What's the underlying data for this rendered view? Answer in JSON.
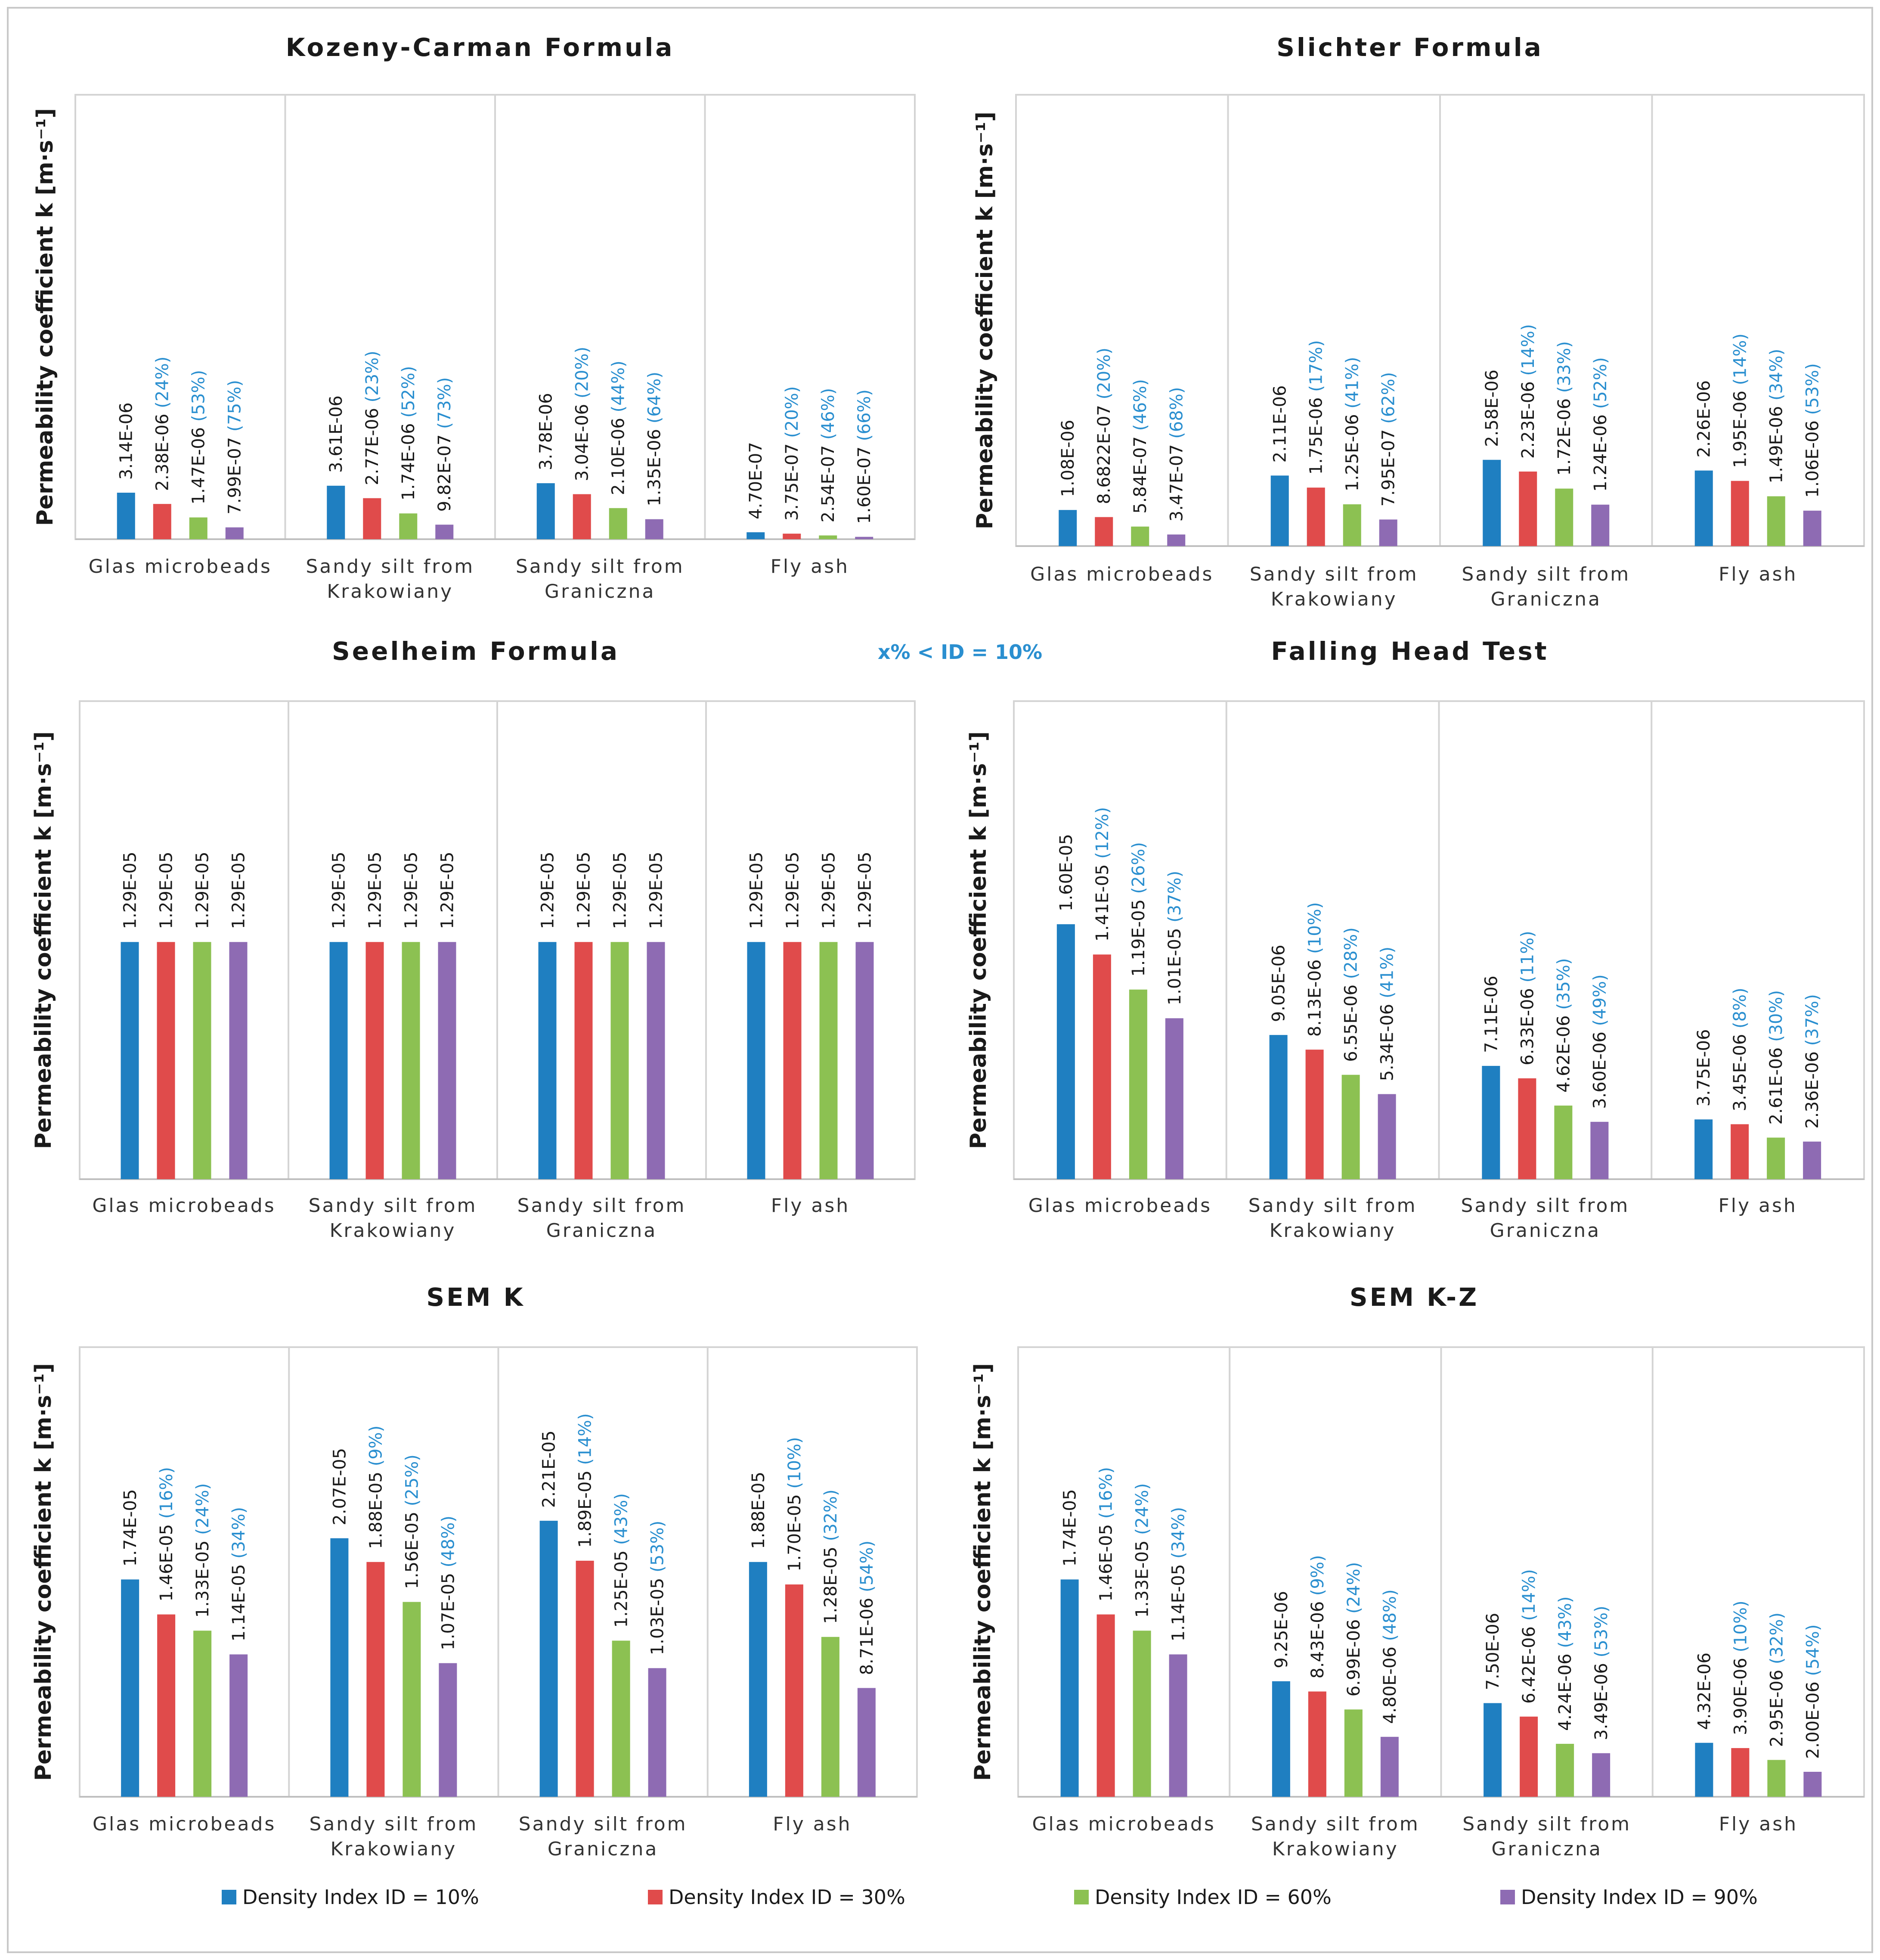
{
  "note": "x% < ID = 10%",
  "legend": [
    {
      "label": "Density Index ID = 10%",
      "color": "#1f7fc1"
    },
    {
      "label": "Density Index ID = 30%",
      "color": "#e04b4b"
    },
    {
      "label": "Density Index ID = 60%",
      "color": "#8cc152"
    },
    {
      "label": "Density Index ID = 90%",
      "color": "#8e6bb3"
    }
  ],
  "chart_data": [
    {
      "type": "bar",
      "title": "Kozeny-Carman Formula",
      "ylabel": "Permeability coefficient k [m·s⁻¹]",
      "categories": [
        [
          "Glas microbeads"
        ],
        [
          "Sandy silt from",
          "Krakowiany"
        ],
        [
          "Sandy silt from",
          "Graniczna"
        ],
        [
          "Fly ash"
        ]
      ],
      "ymax": 3e-05,
      "series": [
        {
          "name": "Density Index ID = 10%",
          "values": [
            3.14e-06,
            3.61e-06,
            3.78e-06,
            4.7e-07
          ],
          "labels": [
            "3.14E-06",
            "3.61E-06",
            "3.78E-06",
            "4.70E-07"
          ],
          "pct": [
            "",
            "",
            "",
            ""
          ]
        },
        {
          "name": "Density Index ID = 30%",
          "values": [
            2.38e-06,
            2.77e-06,
            3.04e-06,
            3.75e-07
          ],
          "labels": [
            "2.38E-06",
            "2.77E-06",
            "3.04E-06",
            "3.75E-07"
          ],
          "pct": [
            "(24%)",
            "(23%)",
            "(20%)",
            "(20%)"
          ]
        },
        {
          "name": "Density Index ID = 60%",
          "values": [
            1.47e-06,
            1.74e-06,
            2.1e-06,
            2.54e-07
          ],
          "labels": [
            "1.47E-06",
            "1.74E-06",
            "2.10E-06",
            "2.54E-07"
          ],
          "pct": [
            "(53%)",
            "(52%)",
            "(44%)",
            "(46%)"
          ]
        },
        {
          "name": "Density Index ID = 90%",
          "values": [
            7.99e-07,
            9.82e-07,
            1.35e-06,
            1.6e-07
          ],
          "labels": [
            "7.99E-07",
            "9.82E-07",
            "1.35E-06",
            "1.60E-07"
          ],
          "pct": [
            "(75%)",
            "(73%)",
            "(64%)",
            "(66%)"
          ]
        }
      ]
    },
    {
      "type": "bar",
      "title": "Slichter Formula",
      "ylabel": "Permeability coefficient k [m·s⁻¹]",
      "categories": [
        [
          "Glas microbeads"
        ],
        [
          "Sandy silt from",
          "Krakowiany"
        ],
        [
          "Sandy silt from",
          "Graniczna"
        ],
        [
          "Fly ash"
        ]
      ],
      "ymax": 1.35e-05,
      "series": [
        {
          "name": "Density Index ID = 10%",
          "values": [
            1.08e-06,
            2.11e-06,
            2.58e-06,
            2.26e-06
          ],
          "labels": [
            "1.08E-06",
            "2.11E-06",
            "2.58E-06",
            "2.26E-06"
          ],
          "pct": [
            "",
            "",
            "",
            ""
          ]
        },
        {
          "name": "Density Index ID = 30%",
          "values": [
            8.6822e-07,
            1.75e-06,
            2.23e-06,
            1.95e-06
          ],
          "labels": [
            "8.6822E-07",
            "1.75E-06",
            "2.23E-06",
            "1.95E-06"
          ],
          "pct": [
            "(20%)",
            "(17%)",
            "(14%)",
            "(14%)"
          ]
        },
        {
          "name": "Density Index ID = 60%",
          "values": [
            5.84e-07,
            1.25e-06,
            1.72e-06,
            1.49e-06
          ],
          "labels": [
            "5.84E-07",
            "1.25E-06",
            "1.72E-06",
            "1.49E-06"
          ],
          "pct": [
            "(46%)",
            "(41%)",
            "(33%)",
            "(34%)"
          ]
        },
        {
          "name": "Density Index ID = 90%",
          "values": [
            3.47e-07,
            7.95e-07,
            1.24e-06,
            1.06e-06
          ],
          "labels": [
            "3.47E-07",
            "7.95E-07",
            "1.24E-06",
            "1.06E-06"
          ],
          "pct": [
            "(68%)",
            "(62%)",
            "(52%)",
            "(53%)"
          ]
        }
      ]
    },
    {
      "type": "bar",
      "title": "Seelheim Formula",
      "ylabel": "Permeability coefficient k [m·s⁻¹]",
      "categories": [
        [
          "Glas microbeads"
        ],
        [
          "Sandy silt from",
          "Krakowiany"
        ],
        [
          "Sandy silt from",
          "Graniczna"
        ],
        [
          "Fly ash"
        ]
      ],
      "ymax": 2.6e-05,
      "series": [
        {
          "name": "Density Index ID = 10%",
          "values": [
            1.29e-05,
            1.29e-05,
            1.29e-05,
            1.29e-05
          ],
          "labels": [
            "1.29E-05",
            "1.29E-05",
            "1.29E-05",
            "1.29E-05"
          ],
          "pct": [
            "",
            "",
            "",
            ""
          ]
        },
        {
          "name": "Density Index ID = 30%",
          "values": [
            1.29e-05,
            1.29e-05,
            1.29e-05,
            1.29e-05
          ],
          "labels": [
            "1.29E-05",
            "1.29E-05",
            "1.29E-05",
            "1.29E-05"
          ],
          "pct": [
            "",
            "",
            "",
            ""
          ]
        },
        {
          "name": "Density Index ID = 60%",
          "values": [
            1.29e-05,
            1.29e-05,
            1.29e-05,
            1.29e-05
          ],
          "labels": [
            "1.29E-05",
            "1.29E-05",
            "1.29E-05",
            "1.29E-05"
          ],
          "pct": [
            "",
            "",
            "",
            ""
          ]
        },
        {
          "name": "Density Index ID = 90%",
          "values": [
            1.29e-05,
            1.29e-05,
            1.29e-05,
            1.29e-05
          ],
          "labels": [
            "1.29E-05",
            "1.29E-05",
            "1.29E-05",
            "1.29E-05"
          ],
          "pct": [
            "",
            "",
            "",
            ""
          ]
        }
      ]
    },
    {
      "type": "bar",
      "title": "Falling Head Test",
      "ylabel": "Permeability coefficient k [m·s⁻¹]",
      "categories": [
        [
          "Glas microbeads"
        ],
        [
          "Sandy silt from",
          "Krakowiany"
        ],
        [
          "Sandy silt from",
          "Graniczna"
        ],
        [
          "Fly ash"
        ]
      ],
      "ymax": 3e-05,
      "series": [
        {
          "name": "Density Index ID = 10%",
          "values": [
            1.6e-05,
            9.05e-06,
            7.11e-06,
            3.75e-06
          ],
          "labels": [
            "1.60E-05",
            "9.05E-06",
            "7.11E-06",
            "3.75E-06"
          ],
          "pct": [
            "",
            "",
            "",
            ""
          ]
        },
        {
          "name": "Density Index ID = 30%",
          "values": [
            1.41e-05,
            8.13e-06,
            6.33e-06,
            3.45e-06
          ],
          "labels": [
            "1.41E-05",
            "8.13E-06",
            "6.33E-06",
            "3.45E-06"
          ],
          "pct": [
            "(12%)",
            "(10%)",
            "(11%)",
            "(8%)"
          ]
        },
        {
          "name": "Density Index ID = 60%",
          "values": [
            1.19e-05,
            6.55e-06,
            4.62e-06,
            2.61e-06
          ],
          "labels": [
            "1.19E-05",
            "6.55E-06",
            "4.62E-06",
            "2.61E-06"
          ],
          "pct": [
            "(26%)",
            "(28%)",
            "(35%)",
            "(30%)"
          ]
        },
        {
          "name": "Density Index ID = 90%",
          "values": [
            1.01e-05,
            5.34e-06,
            3.6e-06,
            2.36e-06
          ],
          "labels": [
            "1.01E-05",
            "5.34E-06",
            "3.60E-06",
            "2.36E-06"
          ],
          "pct": [
            "(37%)",
            "(41%)",
            "(49%)",
            "(37%)"
          ]
        }
      ]
    },
    {
      "type": "bar",
      "title": "SEM K",
      "ylabel": "Permeability coefficient k [m·s⁻¹]",
      "categories": [
        [
          "Glas microbeads"
        ],
        [
          "Sandy silt from",
          "Krakowiany"
        ],
        [
          "Sandy silt from",
          "Graniczna"
        ],
        [
          "Fly ash"
        ]
      ],
      "ymax": 3.6e-05,
      "series": [
        {
          "name": "Density Index ID = 10%",
          "values": [
            1.74e-05,
            2.07e-05,
            2.21e-05,
            1.88e-05
          ],
          "labels": [
            "1.74E-05",
            "2.07E-05",
            "2.21E-05",
            "1.88E-05"
          ],
          "pct": [
            "",
            "",
            "",
            ""
          ]
        },
        {
          "name": "Density Index ID = 30%",
          "values": [
            1.46e-05,
            1.88e-05,
            1.89e-05,
            1.7e-05
          ],
          "labels": [
            "1.46E-05",
            "1.88E-05",
            "1.89E-05",
            "1.70E-05"
          ],
          "pct": [
            "(16%)",
            "(9%)",
            "(14%)",
            "(10%)"
          ]
        },
        {
          "name": "Density Index ID = 60%",
          "values": [
            1.33e-05,
            1.56e-05,
            1.25e-05,
            1.28e-05
          ],
          "labels": [
            "1.33E-05",
            "1.56E-05",
            "1.25E-05",
            "1.28E-05"
          ],
          "pct": [
            "(24%)",
            "(25%)",
            "(43%)",
            "(32%)"
          ]
        },
        {
          "name": "Density Index ID = 90%",
          "values": [
            1.14e-05,
            1.07e-05,
            1.03e-05,
            8.71e-06
          ],
          "labels": [
            "1.14E-05",
            "1.07E-05",
            "1.03E-05",
            "8.71E-06"
          ],
          "pct": [
            "(34%)",
            "(48%)",
            "(53%)",
            "(54%)"
          ]
        }
      ]
    },
    {
      "type": "bar",
      "title": "SEM K-Z",
      "ylabel": "Permeability coefficient k [m·s⁻¹]",
      "categories": [
        [
          "Glas microbeads"
        ],
        [
          "Sandy silt from",
          "Krakowiany"
        ],
        [
          "Sandy silt from",
          "Graniczna"
        ],
        [
          "Fly ash"
        ]
      ],
      "ymax": 3.6e-05,
      "series": [
        {
          "name": "Density Index ID = 10%",
          "values": [
            1.74e-05,
            9.25e-06,
            7.5e-06,
            4.32e-06
          ],
          "labels": [
            "1.74E-05",
            "9.25E-06",
            "7.50E-06",
            "4.32E-06"
          ],
          "pct": [
            "",
            "",
            "",
            ""
          ]
        },
        {
          "name": "Density Index ID = 30%",
          "values": [
            1.46e-05,
            8.43e-06,
            6.42e-06,
            3.9e-06
          ],
          "labels": [
            "1.46E-05",
            "8.43E-06",
            "6.42E-06",
            "3.90E-06"
          ],
          "pct": [
            "(16%)",
            "(9%)",
            "(14%)",
            "(10%)"
          ]
        },
        {
          "name": "Density Index ID = 60%",
          "values": [
            1.33e-05,
            6.99e-06,
            4.24e-06,
            2.95e-06
          ],
          "labels": [
            "1.33E-05",
            "6.99E-06",
            "4.24E-06",
            "2.95E-06"
          ],
          "pct": [
            "(24%)",
            "(24%)",
            "(43%)",
            "(32%)"
          ]
        },
        {
          "name": "Density Index ID = 90%",
          "values": [
            1.14e-05,
            4.8e-06,
            3.49e-06,
            2e-06
          ],
          "labels": [
            "1.14E-05",
            "4.80E-06",
            "3.49E-06",
            "2.00E-06"
          ],
          "pct": [
            "(34%)",
            "(48%)",
            "(53%)",
            "(54%)"
          ]
        }
      ]
    }
  ]
}
